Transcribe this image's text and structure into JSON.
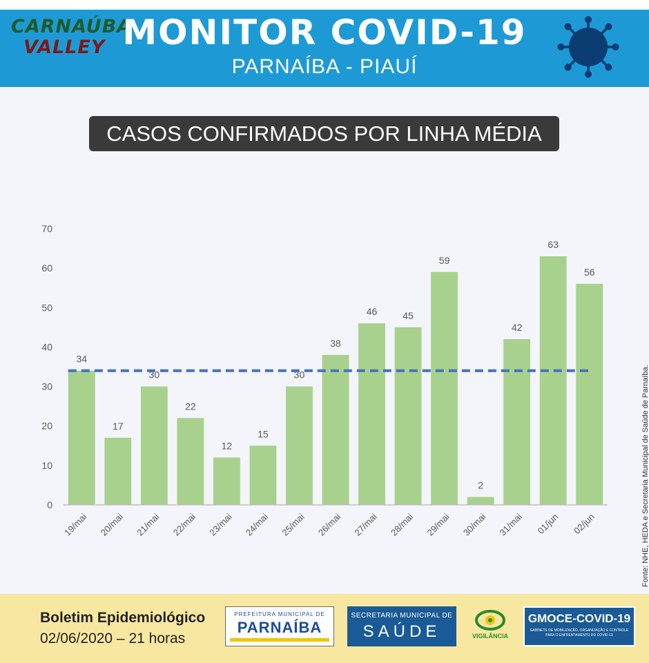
{
  "header": {
    "logo_line1": "CARNAÚBA",
    "logo_line2": "VALLEY",
    "title": "MONITOR COVID-19",
    "subtitle": "PARNAÍBA - PIAUÍ"
  },
  "banner": "CASOS CONFIRMADOS POR LINHA MÉDIA",
  "chart_data": {
    "type": "bar",
    "categories": [
      "19/mai",
      "20/mai",
      "21/mai",
      "22/mai",
      "23/mai",
      "24/mai",
      "25/mai",
      "26/mai",
      "27/mai",
      "28/mai",
      "29/mai",
      "30/mai",
      "31/mai",
      "01/jun",
      "02/jun"
    ],
    "values": [
      34,
      17,
      30,
      22,
      12,
      15,
      30,
      38,
      46,
      45,
      59,
      2,
      42,
      63,
      56
    ],
    "average_line": 34,
    "ylim": [
      0,
      70
    ],
    "yticks": [
      0,
      10,
      20,
      30,
      40,
      50,
      60,
      70
    ],
    "grid": false,
    "colors": {
      "bar": "#a9d18e",
      "average": "#4472c4",
      "axis": "#bfbfbf",
      "label": "#595959"
    },
    "source": "Fonte: NHE, HEDA e Secretaria Municipal de Saúde de Parnaíba."
  },
  "footer": {
    "boletim_title": "Boletim Epidemiológico",
    "boletim_date": "02/06/2020 – 21 horas",
    "prefeitura_line1": "PREFEITURA MUNICIPAL DE",
    "prefeitura_line2": "PARNAÍBA",
    "saude_line1": "SECRETARIA MUNICIPAL DE",
    "saude_line2": "SAÚDE",
    "vigilancia": "VIGILÂNCIA",
    "gmoce_title": "GMOCE-COVID-19",
    "gmoce_sub": "GABINETE DE MOBILIZAÇÃO, ORGANIZAÇÃO E CONTROLE PARA O ENFRENTAMENTO DO COVID-19"
  }
}
